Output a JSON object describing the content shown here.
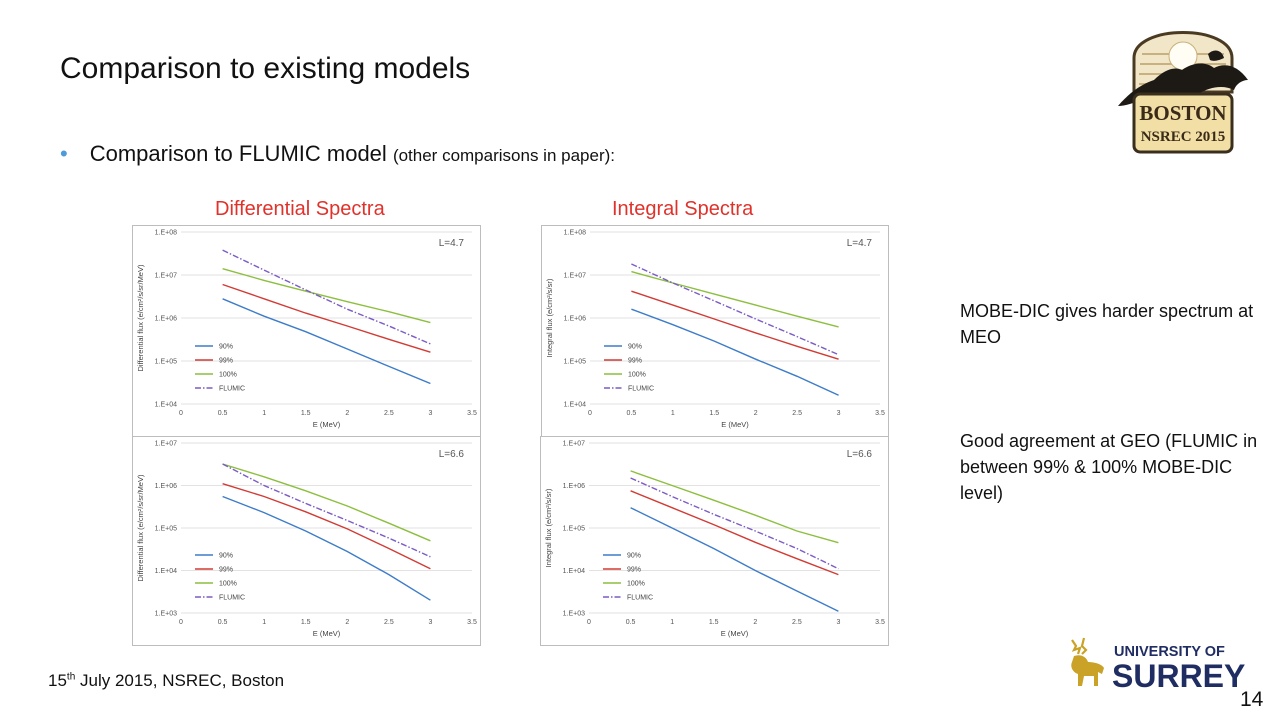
{
  "slide": {
    "title": "Comparison to existing models",
    "bullet_main": "Comparison to FLUMIC model",
    "bullet_note": "(other comparisons in paper):",
    "section_left": "Differential Spectra",
    "section_right": "Integral Spectra",
    "note_meo": "MOBE-DIC gives harder spectrum at MEO",
    "note_geo": "Good agreement at GEO (FLUMIC in between 99% & 100% MOBE-DIC level)",
    "footer_day": "15",
    "footer_th": "th",
    "footer_rest": " July 2015, NSREC, Boston",
    "page_number": "14",
    "logo_boston": "BOSTON NSREC 2015",
    "logo_surrey": "UNIVERSITY OF SURREY"
  },
  "colors": {
    "accent_red": "#e0322b",
    "bullet_blue": "#4f9ad8",
    "series_90": "#3d7cc9",
    "series_99": "#d23b35",
    "series_100": "#8cbf3f",
    "series_flumic": "#7b5cc4"
  },
  "chart_data": [
    {
      "id": "diff-l47",
      "type": "line",
      "subtitle": "L=4.7",
      "xlabel": "E (MeV)",
      "ylabel": "Differential flux (e/cm²/s/sr/MeV)",
      "log_y": true,
      "xlim": [
        0,
        3.5
      ],
      "x_ticks": [
        "0",
        "0.5",
        "1",
        "1.5",
        "2",
        "2.5",
        "3",
        "3.5"
      ],
      "y_ticks": [
        "1.E+04",
        "1.E+05",
        "1.E+06",
        "1.E+07",
        "1.E+08"
      ],
      "ylim_exp": [
        4,
        8
      ],
      "x": [
        0.5,
        1,
        1.5,
        2,
        2.5,
        3
      ],
      "series": [
        {
          "name": "90%",
          "values": [
            2800000.0,
            1100000.0,
            480000.0,
            190000.0,
            75000.0,
            30000.0
          ]
        },
        {
          "name": "99%",
          "values": [
            6000000.0,
            2800000.0,
            1300000.0,
            650000.0,
            320000.0,
            160000.0
          ]
        },
        {
          "name": "100%",
          "values": [
            14000000.0,
            7500000.0,
            4200000.0,
            2400000.0,
            1400000.0,
            780000.0
          ]
        },
        {
          "name": "FLUMIC",
          "values": [
            38000000.0,
            13000000.0,
            4500000.0,
            1600000.0,
            650000.0,
            250000.0
          ]
        }
      ]
    },
    {
      "id": "int-l47",
      "type": "line",
      "subtitle": "L=4.7",
      "xlabel": "E (MeV)",
      "ylabel": "Integral flux (e/cm²/s/sr)",
      "log_y": true,
      "xlim": [
        0,
        3.5
      ],
      "x_ticks": [
        "0",
        "0.5",
        "1",
        "1.5",
        "2",
        "2.5",
        "3",
        "3.5"
      ],
      "y_ticks": [
        "1.E+04",
        "1.E+05",
        "1.E+06",
        "1.E+07",
        "1.E+08"
      ],
      "ylim_exp": [
        4,
        8
      ],
      "x": [
        0.5,
        1,
        1.5,
        2,
        2.5,
        3
      ],
      "series": [
        {
          "name": "90%",
          "values": [
            1600000.0,
            700000.0,
            290000.0,
            110000.0,
            44000.0,
            16000.0
          ]
        },
        {
          "name": "99%",
          "values": [
            4200000.0,
            2000000.0,
            950000.0,
            450000.0,
            220000.0,
            110000.0
          ]
        },
        {
          "name": "100%",
          "values": [
            12000000.0,
            6500000.0,
            3600000.0,
            2000000.0,
            1100000.0,
            620000.0
          ]
        },
        {
          "name": "FLUMIC",
          "values": [
            18000000.0,
            6500000.0,
            2500000.0,
            950000.0,
            370000.0,
            140000.0
          ]
        }
      ]
    },
    {
      "id": "diff-l66",
      "type": "line",
      "subtitle": "L=6.6",
      "xlabel": "E (MeV)",
      "ylabel": "Differential flux (e/cm²/s/sr/MeV)",
      "log_y": true,
      "xlim": [
        0,
        3.5
      ],
      "x_ticks": [
        "0",
        "0.5",
        "1",
        "1.5",
        "2",
        "2.5",
        "3",
        "3.5"
      ],
      "y_ticks": [
        "1.E+03",
        "1.E+04",
        "1.E+05",
        "1.E+06",
        "1.E+07"
      ],
      "ylim_exp": [
        3,
        7
      ],
      "x": [
        0.5,
        1,
        1.5,
        2,
        2.5,
        3
      ],
      "series": [
        {
          "name": "90%",
          "values": [
            550000.0,
            230000.0,
            85000.0,
            28000.0,
            8000.0,
            2000.0
          ]
        },
        {
          "name": "99%",
          "values": [
            1100000.0,
            550000.0,
            240000.0,
            95000.0,
            33000.0,
            11000.0
          ]
        },
        {
          "name": "100%",
          "values": [
            3200000.0,
            1600000.0,
            750000.0,
            330000.0,
            130000.0,
            50000.0
          ]
        },
        {
          "name": "FLUMIC",
          "values": [
            3200000.0,
            1000000.0,
            380000.0,
            150000.0,
            58000.0,
            21000.0
          ]
        }
      ]
    },
    {
      "id": "int-l66",
      "type": "line",
      "subtitle": "L=6.6",
      "xlabel": "E (MeV)",
      "ylabel": "Integral flux (e/cm²/s/sr)",
      "log_y": true,
      "xlim": [
        0,
        3.5
      ],
      "x_ticks": [
        "0",
        "0.5",
        "1",
        "1.5",
        "2",
        "2.5",
        "3",
        "3.5"
      ],
      "y_ticks": [
        "1.E+03",
        "1.E+04",
        "1.E+05",
        "1.E+06",
        "1.E+07"
      ],
      "ylim_exp": [
        3,
        7
      ],
      "x": [
        0.5,
        1,
        1.5,
        2,
        2.5,
        3
      ],
      "series": [
        {
          "name": "90%",
          "values": [
            300000.0,
            100000.0,
            33000.0,
            10000.0,
            3300.0,
            1100.0
          ]
        },
        {
          "name": "99%",
          "values": [
            750000.0,
            300000.0,
            120000.0,
            46000.0,
            19000.0,
            8000.0
          ]
        },
        {
          "name": "100%",
          "values": [
            2200000.0,
            1000000.0,
            450000.0,
            200000.0,
            85000.0,
            45000.0
          ]
        },
        {
          "name": "FLUMIC",
          "values": [
            1500000.0,
            550000.0,
            210000.0,
            85000.0,
            33000.0,
            11000.0
          ]
        }
      ]
    }
  ]
}
